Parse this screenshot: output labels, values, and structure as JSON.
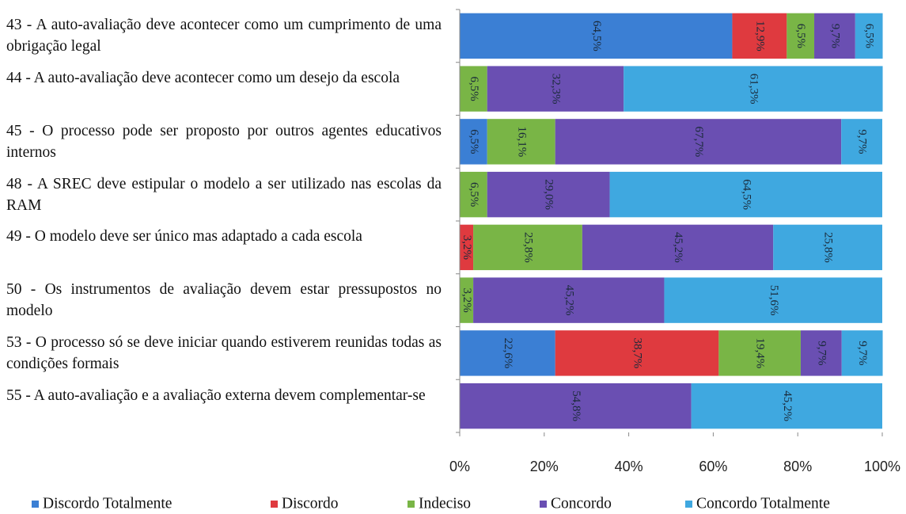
{
  "chart_data": {
    "type": "stacked_bar_horizontal",
    "categories": [
      "43 - A auto-avaliação deve acontecer como um cumprimento de uma obrigação legal",
      "44 - A auto-avaliação deve acontecer como um desejo da escola",
      "45 - O processo pode ser proposto por outros agentes educativos internos",
      "48 - A SREC deve estipular o modelo a ser utilizado nas escolas da RAM",
      "49 - O modelo deve ser único mas adaptado a cada escola",
      "50 - Os instrumentos de avaliação devem estar pressupostos no modelo",
      "53 - O processo só se deve iniciar quando estiverem reunidas todas as condições formais",
      "55 - A auto-avaliação e a avaliação externa devem complementar-se"
    ],
    "series": [
      {
        "name": "Discordo Totalmente",
        "color": "#3b7fd4",
        "values": [
          64.5,
          null,
          6.5,
          null,
          null,
          null,
          22.6,
          null
        ],
        "value_labels": [
          "64,5%",
          null,
          "6,5%",
          null,
          null,
          null,
          "22,6%",
          null
        ]
      },
      {
        "name": "Discordo",
        "color": "#df3a3f",
        "values": [
          12.9,
          null,
          null,
          null,
          3.2,
          null,
          38.7,
          null
        ],
        "value_labels": [
          "12,9%",
          null,
          null,
          null,
          "3,2%",
          null,
          "38,7%",
          null
        ]
      },
      {
        "name": "Indeciso",
        "color": "#79b546",
        "values": [
          6.5,
          6.5,
          16.1,
          6.5,
          25.8,
          3.2,
          19.4,
          null
        ],
        "value_labels": [
          "6,5%",
          "6,5%",
          "16,1%",
          "6,5%",
          "25,8%",
          "3,2%",
          "19,4%",
          null
        ]
      },
      {
        "name": "Concordo",
        "color": "#6a4fb2",
        "values": [
          9.7,
          32.3,
          67.7,
          29.0,
          45.2,
          45.2,
          9.7,
          54.8
        ],
        "value_labels": [
          "9,7%",
          "32,3%",
          "67,7%",
          "29,0%",
          "45,2%",
          "45,2%",
          "9,7%",
          "54,8%"
        ]
      },
      {
        "name": "Concordo Totalmente",
        "color": "#3fa8e0",
        "values": [
          6.5,
          61.3,
          9.7,
          64.5,
          25.8,
          51.6,
          9.7,
          45.2
        ],
        "value_labels": [
          "6,5%",
          "61,3%",
          "9,7%",
          "64,5%",
          "25,8%",
          "51,6%",
          "9,7%",
          "45,2%"
        ]
      }
    ],
    "xlim": [
      0,
      100
    ],
    "xticks": [
      {
        "value": 0,
        "label": "0%"
      },
      {
        "value": 20,
        "label": "20%"
      },
      {
        "value": 40,
        "label": "40%"
      },
      {
        "value": 60,
        "label": "60%"
      },
      {
        "value": 80,
        "label": "80%"
      },
      {
        "value": 100,
        "label": "100%"
      }
    ],
    "legend": "bottom"
  }
}
